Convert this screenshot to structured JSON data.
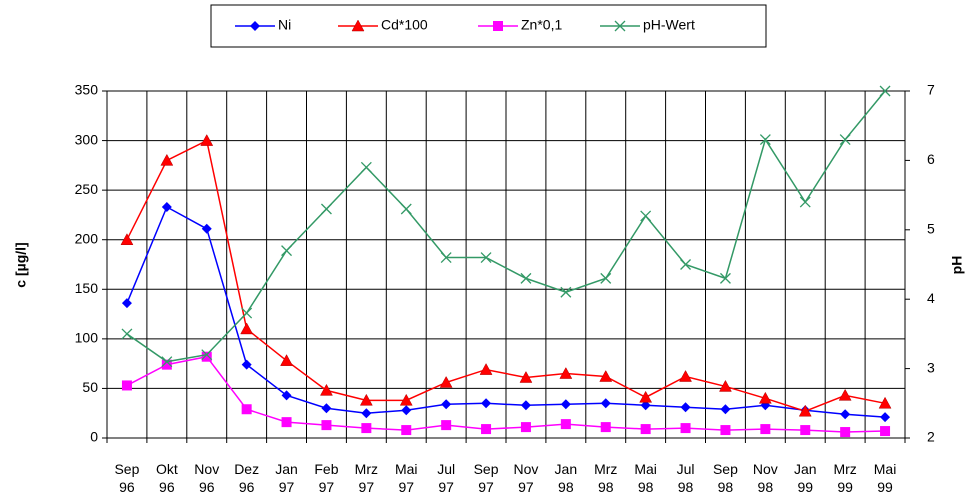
{
  "chart_data": {
    "type": "line",
    "categories": [
      "Sep 96",
      "Okt 96",
      "Nov 96",
      "Dez 96",
      "Jan 97",
      "Feb 97",
      "Mrz 97",
      "Mai 97",
      "Jul 97",
      "Sep 97",
      "Nov 97",
      "Jan 98",
      "Mrz 98",
      "Mai 98",
      "Jul 98",
      "Sep 98",
      "Nov 98",
      "Jan 99",
      "Mrz 99",
      "Mai 99"
    ],
    "series": [
      {
        "name": "Ni",
        "color": "#0000ff",
        "marker": "diamond",
        "values": [
          136,
          233,
          211,
          74,
          43,
          30,
          25,
          28,
          34,
          35,
          33,
          34,
          35,
          33,
          31,
          29,
          33,
          28,
          24,
          21
        ]
      },
      {
        "name": "Cd*100",
        "color": "#ff0000",
        "marker": "triangle",
        "values": [
          200,
          280,
          300,
          110,
          78,
          48,
          38,
          38,
          56,
          69,
          61,
          65,
          62,
          41,
          62,
          52,
          40,
          27,
          43,
          35
        ]
      },
      {
        "name": "Zn*0,1",
        "color": "#ff00ff",
        "marker": "square",
        "values": [
          53,
          74,
          82,
          29,
          16,
          13,
          10,
          8,
          13,
          9,
          11,
          14,
          11,
          9,
          10,
          8,
          9,
          8,
          6,
          7
        ]
      },
      {
        "name": "pH-Wert",
        "color": "#339966",
        "marker": "x",
        "axis": "y2",
        "values": [
          3.5,
          3.1,
          3.2,
          3.8,
          4.7,
          5.3,
          5.9,
          5.3,
          4.6,
          4.6,
          4.3,
          4.1,
          4.3,
          5.2,
          4.5,
          4.3,
          6.3,
          5.4,
          6.3,
          7.0
        ]
      }
    ],
    "y_label": "c [µg/l]",
    "y2_label": "pH",
    "ylim": [
      0,
      350
    ],
    "yticks": [
      0,
      50,
      100,
      150,
      200,
      250,
      300,
      350
    ],
    "y2lim": [
      2,
      7
    ],
    "y2ticks": [
      2,
      3,
      4,
      5,
      6,
      7
    ],
    "grid": true,
    "legend": "top"
  }
}
